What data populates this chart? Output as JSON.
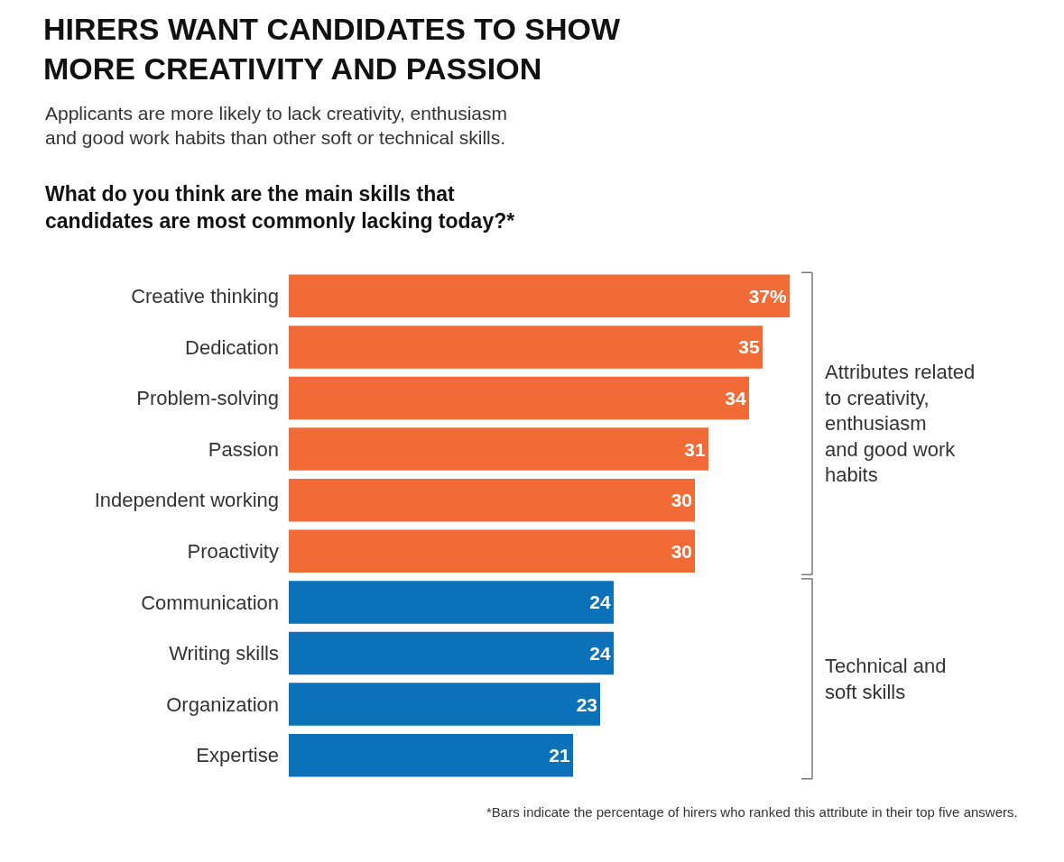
{
  "chart_data": {
    "type": "bar",
    "orientation": "horizontal",
    "title": "HIRERS WANT CANDIDATES TO SHOW\nMORE CREATIVITY AND PASSION",
    "subtitle": "Applicants are more likely to lack creativity, enthusiasm\nand good work habits than other soft or technical skills.",
    "categories": [
      "Creative thinking",
      "Dedication",
      "Problem-solving",
      "Passion",
      "Independent working",
      "Proactivity",
      "Communication",
      "Writing skills",
      "Organization",
      "Expertise"
    ],
    "values": [
      37,
      35,
      34,
      31,
      30,
      30,
      24,
      24,
      23,
      21
    ],
    "value_labels": [
      "37%",
      "35",
      "34",
      "31",
      "30",
      "30",
      "24",
      "24",
      "23",
      "21"
    ],
    "colors": [
      "#f26a36",
      "#f26a36",
      "#f26a36",
      "#f26a36",
      "#f26a36",
      "#f26a36",
      "#0b72b9",
      "#0b72b9",
      "#0b72b9",
      "#0b72b9"
    ],
    "annotations": [
      "What do you think are the main skills that\ncandidates are most commonly lacking today?*",
      "Attributes related\nto creativity,\nenthusiasm\nand good work\nhabits",
      "Technical and\nsoft skills",
      "*Bars indicate the percentage of hirers who ranked this attribute in their top five answers."
    ]
  }
}
